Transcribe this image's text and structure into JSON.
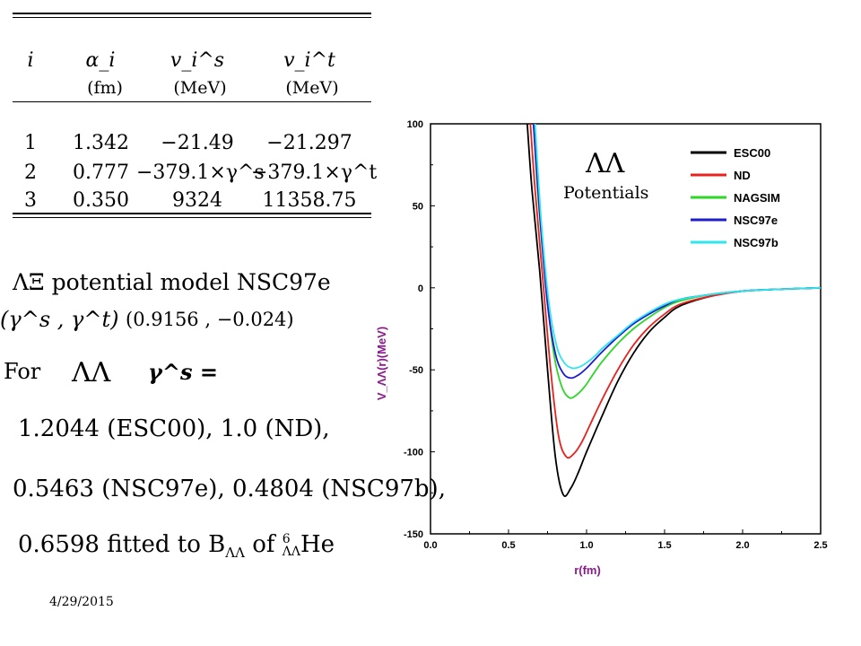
{
  "table": {
    "headers": [
      "i",
      "α_i",
      "v_i^s",
      "v_i^t"
    ],
    "units": [
      "",
      "(fm)",
      "(MeV)",
      "(MeV)"
    ],
    "rows": [
      [
        "1",
        "1.342",
        "−21.49",
        "−21.297"
      ],
      [
        "2",
        "0.777",
        "−379.1×γ^s",
        "−379.1×γ^t"
      ],
      [
        "3",
        "0.350",
        "9324",
        "11358.75"
      ]
    ]
  },
  "model": {
    "title": "ΛΞ potential model NSC97e",
    "gamma_label": "(γ^s , γ^t)",
    "gamma_values": "(0.9156 , −0.024)"
  },
  "for_line": {
    "prefix": "For",
    "symbol": "ΛΛ",
    "gamma": "γ^s =",
    "line1": "1.2044 (ESC00), 1.0 (ND),",
    "line2": "0.5463 (NSC97e), 0.4804 (NSC97b),",
    "line3_text": "0.6598 fitted to B",
    "line3_sub": "ΛΛ",
    "line3_of": "of",
    "line3_sup": "6",
    "line3_nuc_sub": "ΛΛ",
    "line3_nuc": "He"
  },
  "date": "4/29/2015",
  "chart_data": {
    "type": "line",
    "title": "",
    "annotation_symbol": "ΛΛ",
    "annotation_text": "Potentials",
    "xlabel": "r(fm)",
    "ylabel": "V_ΛΛ(r)(MeV)",
    "xlim": [
      0.0,
      2.5
    ],
    "ylim": [
      -150,
      100
    ],
    "xticks": [
      "0.0",
      "0.5",
      "1.0",
      "1.5",
      "2.0",
      "2.5"
    ],
    "yticks": [
      "100",
      "50",
      "0",
      "-50",
      "-100",
      "-150"
    ],
    "legend_position": "top-right",
    "series": [
      {
        "name": "ESC00",
        "color": "#000000",
        "x": [
          0.62,
          0.65,
          0.7,
          0.75,
          0.8,
          0.85,
          0.9,
          0.95,
          1.0,
          1.1,
          1.2,
          1.3,
          1.4,
          1.5,
          1.6,
          1.8,
          2.0,
          2.2,
          2.5
        ],
        "y": [
          100,
          60,
          10,
          -50,
          -103,
          -126,
          -122,
          -112,
          -100,
          -78,
          -57,
          -40,
          -27,
          -18,
          -11,
          -5,
          -2,
          -1,
          0
        ]
      },
      {
        "name": "ND",
        "color": "#e8211d",
        "x": [
          0.64,
          0.67,
          0.72,
          0.77,
          0.82,
          0.87,
          0.92,
          0.97,
          1.02,
          1.1,
          1.2,
          1.3,
          1.4,
          1.5,
          1.6,
          1.8,
          2.0,
          2.2,
          2.5
        ],
        "y": [
          100,
          60,
          5,
          -50,
          -90,
          -103,
          -101,
          -94,
          -84,
          -68,
          -50,
          -35,
          -24,
          -16,
          -10,
          -5,
          -2,
          -1,
          0
        ]
      },
      {
        "name": "NAGSIM",
        "color": "#2ed62a",
        "x": [
          0.66,
          0.69,
          0.74,
          0.79,
          0.84,
          0.89,
          0.94,
          0.99,
          1.04,
          1.1,
          1.2,
          1.3,
          1.4,
          1.5,
          1.6,
          1.8,
          2.0,
          2.2,
          2.5
        ],
        "y": [
          100,
          55,
          0,
          -40,
          -60,
          -67,
          -65,
          -60,
          -53,
          -45,
          -34,
          -25,
          -18,
          -12,
          -8,
          -4,
          -2,
          -1,
          0
        ]
      },
      {
        "name": "NSC97e",
        "color": "#1d1dcc",
        "x": [
          0.66,
          0.7,
          0.75,
          0.8,
          0.85,
          0.9,
          0.95,
          1.0,
          1.05,
          1.1,
          1.2,
          1.3,
          1.4,
          1.5,
          1.6,
          1.8,
          2.0,
          2.2,
          2.5
        ],
        "y": [
          100,
          45,
          -10,
          -40,
          -52,
          -55,
          -53,
          -49,
          -44,
          -39,
          -30,
          -22,
          -16,
          -11,
          -7,
          -4,
          -2,
          -1,
          0
        ]
      },
      {
        "name": "NSC97b",
        "color": "#2ee6ee",
        "x": [
          0.67,
          0.71,
          0.76,
          0.81,
          0.86,
          0.91,
          0.96,
          1.01,
          1.06,
          1.1,
          1.2,
          1.3,
          1.4,
          1.5,
          1.6,
          1.8,
          2.0,
          2.2,
          2.5
        ],
        "y": [
          100,
          40,
          -10,
          -36,
          -46,
          -49,
          -48,
          -45,
          -41,
          -37,
          -29,
          -21,
          -15,
          -10,
          -7,
          -4,
          -2,
          -1,
          0
        ]
      }
    ]
  }
}
